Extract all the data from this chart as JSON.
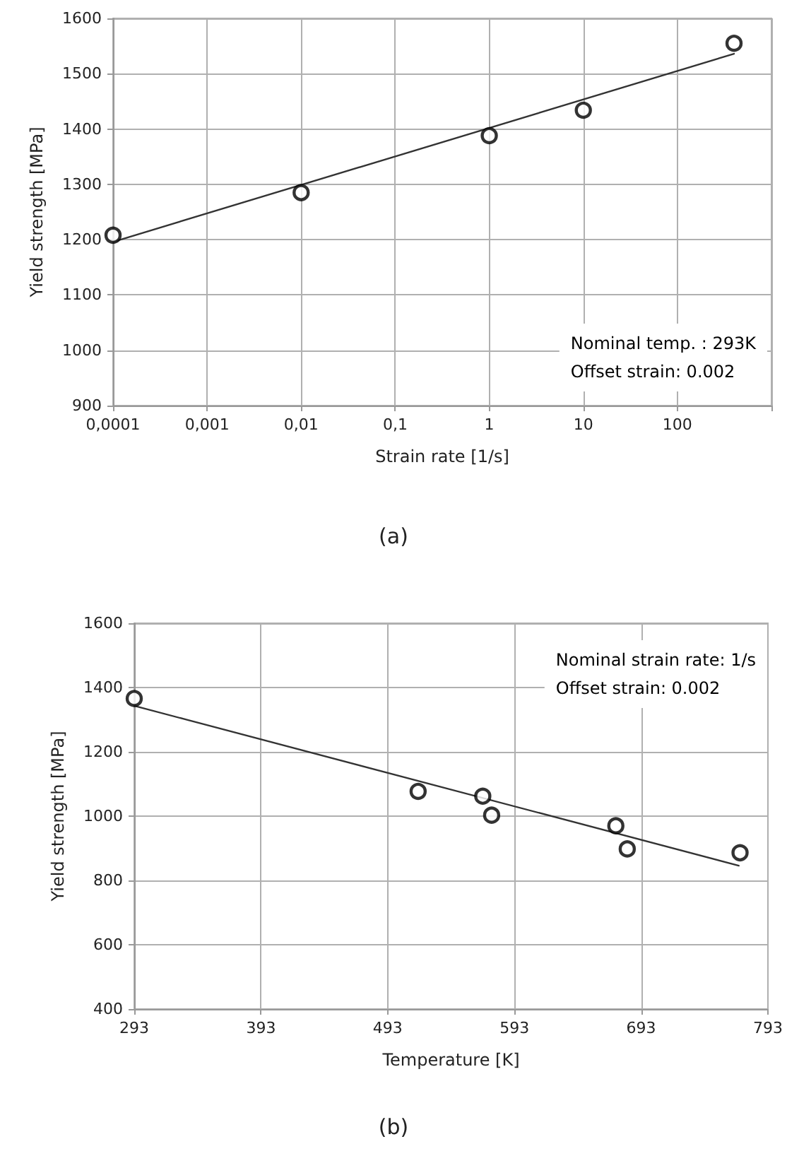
{
  "chart_data": [
    {
      "type": "scatter",
      "title": "(a)",
      "xlabel": "Strain rate [1/s]",
      "ylabel": "Yield strength [MPa]",
      "log": "x",
      "xlim": [
        0.0001,
        1000
      ],
      "xticks": [
        {
          "value": 0.0001,
          "label": "0,0001"
        },
        {
          "value": 0.001,
          "label": "0,001"
        },
        {
          "value": 0.01,
          "label": "0,01"
        },
        {
          "value": 0.1,
          "label": "0,1"
        },
        1,
        10,
        100,
        {
          "value": 1000,
          "label": null
        }
      ],
      "ylim": [
        900,
        1600
      ],
      "yticks": [
        900,
        1000,
        1100,
        1200,
        1300,
        1400,
        1500,
        1600
      ],
      "grid": true,
      "annotations": [
        "Nominal temp. : 293K",
        "Offset strain: 0.002"
      ],
      "series": [
        {
          "color": "#000000",
          "marker": "circle",
          "x": [
            0.0001,
            0.01,
            1,
            10,
            400
          ],
          "values": [
            1208,
            1285,
            1388,
            1434,
            1555
          ]
        },
        {
          "type": "line",
          "color": "#333333",
          "marker": "none",
          "line_style": "solid",
          "x": [
            0.0001,
            400
          ],
          "values": [
            1196,
            1536
          ]
        }
      ]
    },
    {
      "type": "scatter",
      "title": "(b)",
      "xlabel": "Temperature [K]",
      "ylabel": "Yield strength [MPa]",
      "xlim": [
        293,
        793
      ],
      "xticks": [
        293,
        393,
        493,
        593,
        693,
        793
      ],
      "ylim": [
        400,
        1600
      ],
      "yticks": [
        400,
        600,
        800,
        1000,
        1200,
        1400,
        1600
      ],
      "grid": true,
      "annotations": [
        "Nominal strain rate: 1/s",
        "Offset strain: 0.002"
      ],
      "series": [
        {
          "color": "#000000",
          "marker": "circle",
          "x": [
            293,
            517,
            568,
            575,
            673,
            682,
            771
          ],
          "values": [
            1366,
            1077,
            1062,
            1003,
            970,
            898,
            886
          ]
        },
        {
          "type": "line",
          "color": "#333333",
          "marker": "none",
          "line_style": "solid",
          "x": [
            293,
            770
          ],
          "values": [
            1343,
            846
          ]
        }
      ]
    }
  ]
}
